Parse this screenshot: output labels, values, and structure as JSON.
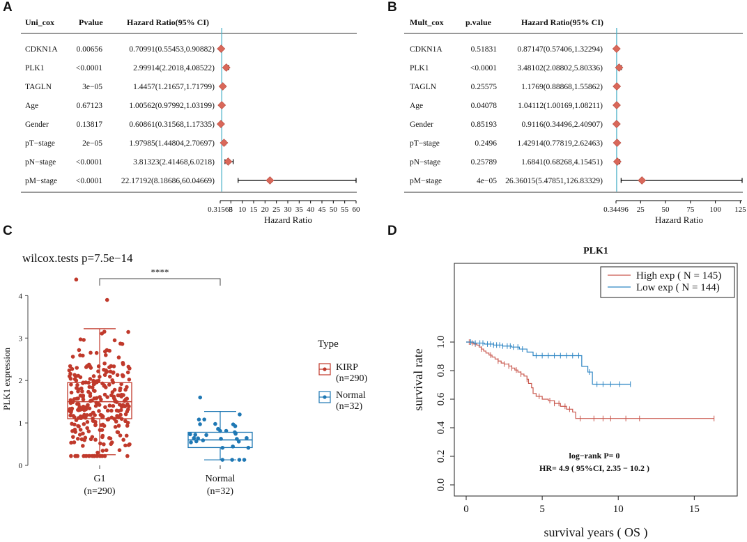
{
  "panels": {
    "a": "A",
    "b": "B",
    "c": "C",
    "d": "D"
  },
  "chart_data": [
    {
      "type": "forest",
      "id": "uni",
      "headers": [
        "Uni_cox",
        "Pvalue",
        "Hazard Ratio(95% CI)"
      ],
      "rows": [
        {
          "name": "CDKN1A",
          "p": "0.00656",
          "ci": "0.70991(0.55453,0.90882)",
          "hr": 0.70991,
          "lo": 0.55453,
          "hi": 0.90882
        },
        {
          "name": "PLK1",
          "p": "<0.0001",
          "ci": "2.99914(2.2018,4.08522)",
          "hr": 2.99914,
          "lo": 2.2018,
          "hi": 4.08522
        },
        {
          "name": "TAGLN",
          "p": "3e−05",
          "ci": "1.4457(1.21657,1.71799)",
          "hr": 1.4457,
          "lo": 1.21657,
          "hi": 1.71799
        },
        {
          "name": "Age",
          "p": "0.67123",
          "ci": "1.00562(0.97992,1.03199)",
          "hr": 1.00562,
          "lo": 0.97992,
          "hi": 1.03199
        },
        {
          "name": "Gender",
          "p": "0.13817",
          "ci": "0.60861(0.31568,1.17335)",
          "hr": 0.60861,
          "lo": 0.31568,
          "hi": 1.17335
        },
        {
          "name": "pT−stage",
          "p": "2e−05",
          "ci": "1.97985(1.44804,2.70697)",
          "hr": 1.97985,
          "lo": 1.44804,
          "hi": 2.70697
        },
        {
          "name": "pN−stage",
          "p": "<0.0001",
          "ci": "3.81323(2.41468,6.0218)",
          "hr": 3.81323,
          "lo": 2.41468,
          "hi": 6.0218
        },
        {
          "name": "pM−stage",
          "p": "<0.0001",
          "ci": "22.17192(8.18686,60.04669)",
          "hr": 22.17192,
          "lo": 8.18686,
          "hi": 60.04669
        }
      ],
      "xlim": [
        0.31568,
        60
      ],
      "ticks": [
        "0.31568",
        "5",
        "10",
        "15",
        "20",
        "25",
        "30",
        "35",
        "40",
        "45",
        "50",
        "55",
        "60"
      ],
      "tick_values": [
        0.31568,
        5,
        10,
        15,
        20,
        25,
        30,
        35,
        40,
        45,
        50,
        55,
        60
      ],
      "ref_line": 1,
      "xlabel": "Hazard Ratio"
    },
    {
      "type": "forest",
      "id": "mult",
      "headers": [
        "Mult_cox",
        "p.value",
        "Hazard Ratio(95% CI)"
      ],
      "rows": [
        {
          "name": "CDKN1A",
          "p": "0.51831",
          "ci": "0.87147(0.57406,1.32294)",
          "hr": 0.87147,
          "lo": 0.57406,
          "hi": 1.32294
        },
        {
          "name": "PLK1",
          "p": "<0.0001",
          "ci": "3.48102(2.08802,5.80336)",
          "hr": 3.48102,
          "lo": 2.08802,
          "hi": 5.80336
        },
        {
          "name": "TAGLN",
          "p": "0.25575",
          "ci": "1.1769(0.88868,1.55862)",
          "hr": 1.1769,
          "lo": 0.88868,
          "hi": 1.55862
        },
        {
          "name": "Age",
          "p": "0.04078",
          "ci": "1.04112(1.00169,1.08211)",
          "hr": 1.04112,
          "lo": 1.00169,
          "hi": 1.08211
        },
        {
          "name": "Gender",
          "p": "0.85193",
          "ci": "0.9116(0.34496,2.40907)",
          "hr": 0.9116,
          "lo": 0.34496,
          "hi": 2.40907
        },
        {
          "name": "pT−stage",
          "p": "0.2496",
          "ci": "1.42914(0.77819,2.62463)",
          "hr": 1.42914,
          "lo": 0.77819,
          "hi": 2.62463
        },
        {
          "name": "pN−stage",
          "p": "0.25789",
          "ci": "1.6841(0.68268,4.15451)",
          "hr": 1.6841,
          "lo": 0.68268,
          "hi": 4.15451
        },
        {
          "name": "pM−stage",
          "p": "4e−05",
          "ci": "26.36015(5.47851,126.83329)",
          "hr": 26.36015,
          "lo": 5.47851,
          "hi": 126.83329
        }
      ],
      "xlim": [
        0.34496,
        126.83329
      ],
      "ticks": [
        "0.34496",
        "25",
        "50",
        "75",
        "100",
        "125"
      ],
      "tick_values": [
        0.34496,
        25,
        50,
        75,
        100,
        125
      ],
      "ref_line": 1,
      "xlabel": "Hazard Ratio"
    },
    {
      "type": "boxplot",
      "id": "box",
      "title": "wilcox.tests p=7.5e−14",
      "ylabel": "PLK1 expression",
      "ylim": [
        0,
        4.4
      ],
      "yticks": [
        "0",
        "1",
        "2",
        "3",
        "4"
      ],
      "signif": "****",
      "legend_title": "Type",
      "groups": [
        {
          "name": "G1",
          "n_label": "(n=290)",
          "legend": "KIRP",
          "legend_n": "(n=290)",
          "color": "#c0392b",
          "q1": 1.1,
          "median": 1.5,
          "q3": 1.95,
          "whisker_low": 0.25,
          "whisker_high": 3.22,
          "n": 290,
          "max": 4.38,
          "min": 0.22
        },
        {
          "name": "Normal",
          "n_label": "(n=32)",
          "legend": "Normal",
          "legend_n": "(n=32)",
          "color": "#1f78b4",
          "q1": 0.42,
          "median": 0.6,
          "q3": 0.78,
          "whisker_low": 0.13,
          "whisker_high": 1.27,
          "n": 32,
          "max": 1.6,
          "min": 0.13
        }
      ]
    },
    {
      "type": "km",
      "id": "km",
      "title": "PLK1",
      "xlabel": "survival years ( OS  )",
      "ylabel": "survival rate",
      "xlim": [
        0,
        17
      ],
      "ylim": [
        0,
        1
      ],
      "xticks": [
        "0",
        "5",
        "10",
        "15"
      ],
      "yticks": [
        "0.0",
        "0.2",
        "0.4",
        "0.6",
        "0.8",
        "1.0"
      ],
      "stat1": "log−rank P= 0",
      "stat2": "HR= 4.9 ( 95%CI, 2.35 − 10.2 )",
      "series": [
        {
          "name": "High exp ( N = 145)",
          "color": "#c9584e",
          "steps": [
            [
              0,
              1
            ],
            [
              0.3,
              0.993
            ],
            [
              0.5,
              0.986
            ],
            [
              0.7,
              0.979
            ],
            [
              0.85,
              0.965
            ],
            [
              1.0,
              0.951
            ],
            [
              1.15,
              0.937
            ],
            [
              1.3,
              0.923
            ],
            [
              1.5,
              0.909
            ],
            [
              1.7,
              0.895
            ],
            [
              1.9,
              0.881
            ],
            [
              2.1,
              0.867
            ],
            [
              2.3,
              0.853
            ],
            [
              2.5,
              0.846
            ],
            [
              2.8,
              0.832
            ],
            [
              3.0,
              0.818
            ],
            [
              3.2,
              0.804
            ],
            [
              3.4,
              0.79
            ],
            [
              3.6,
              0.776
            ],
            [
              3.8,
              0.762
            ],
            [
              4.0,
              0.74
            ],
            [
              4.1,
              0.71
            ],
            [
              4.3,
              0.68
            ],
            [
              4.4,
              0.64
            ],
            [
              4.6,
              0.62
            ],
            [
              5.0,
              0.6
            ],
            [
              5.4,
              0.59
            ],
            [
              5.8,
              0.57
            ],
            [
              6.2,
              0.55
            ],
            [
              6.6,
              0.53
            ],
            [
              7.0,
              0.51
            ],
            [
              7.2,
              0.465
            ],
            [
              16.3,
              0.465
            ]
          ],
          "censor": [
            0.2,
            0.4,
            0.6,
            1.0,
            1.6,
            2.1,
            2.5,
            2.8,
            3.0,
            3.3,
            3.6,
            4.0,
            4.8,
            5.5,
            5.8,
            6.1,
            6.5,
            6.8,
            7.5,
            8.4,
            9.0,
            9.5,
            10.5,
            11.4,
            16.3
          ]
        },
        {
          "name": "Low exp ( N = 144)",
          "color": "#2f86c4",
          "steps": [
            [
              0,
              1
            ],
            [
              0.5,
              0.993
            ],
            [
              1.2,
              0.986
            ],
            [
              1.8,
              0.979
            ],
            [
              2.4,
              0.972
            ],
            [
              3.0,
              0.965
            ],
            [
              3.5,
              0.951
            ],
            [
              4.0,
              0.93
            ],
            [
              4.4,
              0.905
            ],
            [
              7.5,
              0.905
            ],
            [
              7.6,
              0.83
            ],
            [
              8.0,
              0.79
            ],
            [
              8.3,
              0.705
            ],
            [
              10.8,
              0.705
            ]
          ],
          "censor": [
            0.3,
            0.6,
            0.9,
            1.1,
            1.4,
            1.6,
            1.8,
            2.0,
            2.2,
            2.4,
            2.7,
            2.9,
            3.1,
            3.4,
            3.7,
            4.6,
            5.0,
            5.4,
            5.8,
            6.2,
            6.6,
            7.0,
            7.4,
            8.1,
            8.6,
            9.0,
            9.5,
            10.1,
            10.8
          ]
        }
      ]
    }
  ]
}
